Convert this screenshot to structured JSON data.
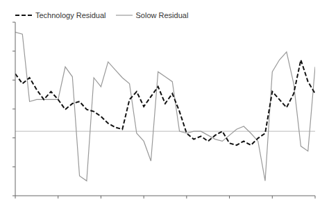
{
  "chart_data": {
    "type": "line",
    "x": [
      0,
      1,
      2,
      3,
      4,
      5,
      6,
      7,
      8,
      9,
      10,
      11,
      12,
      13,
      14,
      15,
      16,
      17,
      18,
      19,
      20,
      21,
      22,
      23,
      24,
      25,
      26,
      27,
      28,
      29,
      30,
      31,
      32,
      33,
      34,
      35,
      36,
      37,
      38,
      39,
      40,
      41,
      42
    ],
    "series": [
      {
        "name": "Technology Residual",
        "color": "#111111",
        "line_style": "dashed",
        "values": [
          0.48,
          0.38,
          0.44,
          0.32,
          0.22,
          0.3,
          0.22,
          0.12,
          0.18,
          0.2,
          0.12,
          0.1,
          0.05,
          -0.02,
          -0.06,
          -0.08,
          0.22,
          0.3,
          0.15,
          0.25,
          0.35,
          0.18,
          0.28,
          0.1,
          -0.12,
          -0.18,
          -0.15,
          -0.2,
          -0.14,
          -0.1,
          -0.22,
          -0.24,
          -0.2,
          -0.24,
          -0.17,
          -0.12,
          0.3,
          0.22,
          0.14,
          0.28,
          0.62,
          0.4,
          0.28
        ]
      },
      {
        "name": "Solow Residual",
        "color": "#999999",
        "line_style": "solid",
        "values": [
          0.9,
          0.88,
          0.2,
          0.22,
          0.22,
          0.22,
          0.22,
          0.55,
          0.45,
          -0.55,
          -0.6,
          0.44,
          0.35,
          0.6,
          0.52,
          0.44,
          0.38,
          -0.12,
          -0.2,
          -0.4,
          0.5,
          0.45,
          0.4,
          -0.1,
          -0.12,
          -0.1,
          -0.1,
          -0.14,
          -0.18,
          -0.2,
          -0.14,
          -0.08,
          -0.05,
          -0.12,
          -0.2,
          -0.6,
          0.5,
          0.62,
          0.7,
          0.38,
          -0.25,
          -0.3,
          0.55
        ]
      }
    ],
    "xlim": [
      0,
      42
    ],
    "xticks": [
      0,
      6,
      12,
      18,
      24,
      30,
      36,
      42
    ],
    "ylim": [
      -0.75,
      1.0
    ],
    "yticks": [
      -0.75,
      -0.4583333333333333,
      -0.16666666666666666,
      0.125,
      0.41666666666666663,
      0.7083333333333333,
      1.0
    ],
    "reference_line": -0.1,
    "tick_labels": false,
    "grid": false,
    "legend": "upper left"
  }
}
